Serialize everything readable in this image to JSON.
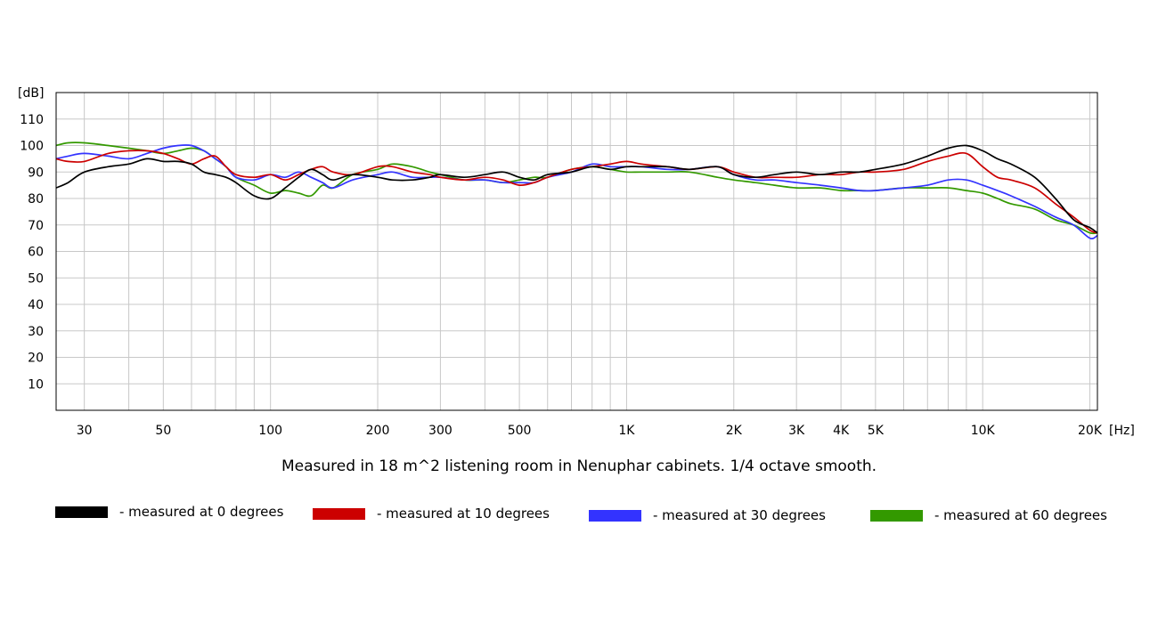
{
  "chart_data": {
    "type": "line",
    "title": "Measured in 18 m^2 listening room in Nenuphar cabinets. 1/4 octave smooth.",
    "xlabel": "[Hz]",
    "ylabel": "[dB]",
    "x_scale": "log",
    "xlim": [
      25,
      21000
    ],
    "ylim": [
      0,
      120
    ],
    "grid": true,
    "legend_position": "bottom",
    "x_ticks": [
      {
        "value": 30,
        "label": "30"
      },
      {
        "value": 50,
        "label": "50"
      },
      {
        "value": 100,
        "label": "100"
      },
      {
        "value": 200,
        "label": "200"
      },
      {
        "value": 300,
        "label": "300"
      },
      {
        "value": 500,
        "label": "500"
      },
      {
        "value": 1000,
        "label": "1K"
      },
      {
        "value": 2000,
        "label": "2K"
      },
      {
        "value": 3000,
        "label": "3K"
      },
      {
        "value": 4000,
        "label": "4K"
      },
      {
        "value": 5000,
        "label": "5K"
      },
      {
        "value": 10000,
        "label": "10K"
      },
      {
        "value": 20000,
        "label": "20K"
      }
    ],
    "y_ticks": [
      10,
      20,
      30,
      40,
      50,
      60,
      70,
      80,
      90,
      100,
      110
    ],
    "x": [
      25,
      27,
      30,
      35,
      40,
      45,
      50,
      55,
      60,
      65,
      70,
      75,
      80,
      90,
      100,
      110,
      120,
      130,
      140,
      150,
      170,
      200,
      220,
      250,
      280,
      300,
      350,
      400,
      450,
      500,
      550,
      600,
      700,
      800,
      900,
      1000,
      1100,
      1300,
      1500,
      1800,
      2000,
      2300,
      2600,
      3000,
      3500,
      4000,
      4500,
      5000,
      6000,
      7000,
      8000,
      9000,
      10000,
      11000,
      12000,
      14000,
      16000,
      18000,
      20000,
      21000
    ],
    "series": [
      {
        "name": "- measured at 0 degrees",
        "color": "#000000",
        "values": [
          84,
          86,
          90,
          92,
          93,
          95,
          94,
          94,
          93,
          90,
          89,
          88,
          86,
          81,
          80,
          84,
          88,
          91,
          89,
          87,
          89,
          88,
          87,
          87,
          88,
          89,
          88,
          89,
          90,
          88,
          87,
          89,
          90,
          92,
          91,
          92,
          92,
          92,
          91,
          92,
          89,
          88,
          89,
          90,
          89,
          90,
          90,
          91,
          93,
          96,
          99,
          100,
          98,
          95,
          93,
          88,
          80,
          72,
          69,
          67
        ]
      },
      {
        "name": "- measured at 10 degrees",
        "color": "#cc0000",
        "values": [
          95,
          94,
          94,
          97,
          98,
          98,
          97,
          95,
          93,
          95,
          96,
          92,
          89,
          88,
          89,
          87,
          89,
          91,
          92,
          90,
          89,
          92,
          92,
          90,
          89,
          88,
          87,
          88,
          87,
          85,
          86,
          88,
          91,
          92,
          93,
          94,
          93,
          92,
          91,
          92,
          90,
          88,
          88,
          88,
          89,
          89,
          90,
          90,
          91,
          94,
          96,
          97,
          92,
          88,
          87,
          84,
          78,
          73,
          68,
          67
        ]
      },
      {
        "name": "- measured at 30 degrees",
        "color": "#3333ff",
        "values": [
          95,
          96,
          97,
          96,
          95,
          97,
          99,
          100,
          100,
          98,
          95,
          92,
          88,
          87,
          89,
          88,
          90,
          88,
          86,
          84,
          87,
          89,
          90,
          88,
          88,
          88,
          87,
          87,
          86,
          86,
          86,
          88,
          90,
          93,
          92,
          92,
          92,
          91,
          91,
          92,
          89,
          87,
          87,
          86,
          85,
          84,
          83,
          83,
          84,
          85,
          87,
          87,
          85,
          83,
          81,
          77,
          73,
          70,
          65,
          66
        ]
      },
      {
        "name": "- measured at 60 degrees",
        "color": "#339900",
        "values": [
          100,
          101,
          101,
          100,
          99,
          98,
          97,
          98,
          99,
          98,
          95,
          92,
          88,
          85,
          82,
          83,
          82,
          81,
          85,
          84,
          89,
          91,
          93,
          92,
          90,
          89,
          87,
          87,
          86,
          87,
          88,
          88,
          91,
          92,
          91,
          90,
          90,
          90,
          90,
          88,
          87,
          86,
          85,
          84,
          84,
          83,
          83,
          83,
          84,
          84,
          84,
          83,
          82,
          80,
          78,
          76,
          72,
          70,
          67,
          67
        ]
      }
    ]
  }
}
